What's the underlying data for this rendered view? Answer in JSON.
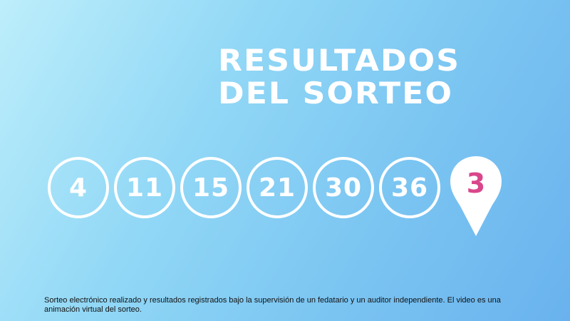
{
  "title": {
    "line1": "RESULTADOS",
    "line2": "DEL SORTEO"
  },
  "numbers": [
    "4",
    "11",
    "15",
    "21",
    "30",
    "36"
  ],
  "reintegro": "3",
  "disclaimer": "Sorteo electrónico realizado y resultados registrados bajo la supervisión de un fedatario y un auditor independiente. El video es una animación virtual del sorteo.",
  "colors": {
    "reintegro_text": "#d9478b",
    "ball_border": "#ffffff"
  },
  "icons": {
    "reintegro": "map-pin-icon"
  }
}
